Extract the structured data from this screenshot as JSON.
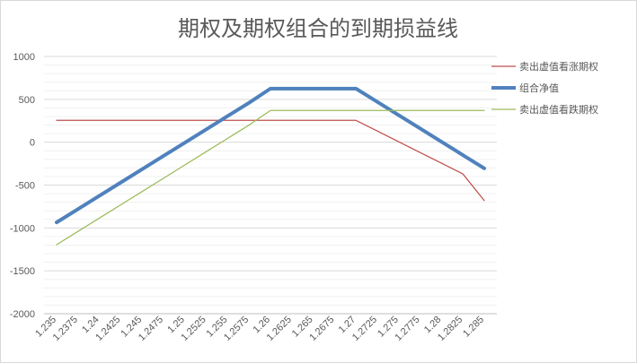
{
  "chart_data": {
    "type": "line",
    "title": "期权及期权组合的到期损益线",
    "xlabel": "",
    "ylabel": "",
    "ylim": [
      -2000,
      1000
    ],
    "ytick_step": 500,
    "ytick_labels": [
      "1000",
      "500",
      "0",
      "-500",
      "-1000",
      "-1500",
      "-2000"
    ],
    "grid": true,
    "legend_position": "right",
    "categories": [
      "1.235",
      "1.2375",
      "1.24",
      "1.2425",
      "1.245",
      "1.2475",
      "1.25",
      "1.2525",
      "1.255",
      "1.2575",
      "1.26",
      "1.2625",
      "1.265",
      "1.2675",
      "1.27",
      "1.2725",
      "1.275",
      "1.2775",
      "1.28",
      "1.2825",
      "1.285"
    ],
    "series": [
      {
        "name": "卖出虚值看涨期权",
        "color": "#c0504d",
        "values": [
          255,
          255,
          255,
          255,
          255,
          255,
          255,
          255,
          255,
          255,
          255,
          255,
          255,
          255,
          255,
          130,
          5,
          -120,
          -245,
          -370,
          -680
        ]
      },
      {
        "name": "组合净值",
        "color": "#4f81bd",
        "values": [
          -935,
          -780,
          -625,
          -470,
          -315,
          -160,
          -5,
          150,
          305,
          460,
          625,
          625,
          625,
          625,
          625,
          470,
          315,
          160,
          5,
          -150,
          -305
        ]
      },
      {
        "name": "卖出虚值看跌期权",
        "color": "#9bbb59",
        "values": [
          -1195,
          -1040,
          -885,
          -730,
          -575,
          -420,
          -265,
          -110,
          45,
          200,
          370,
          370,
          370,
          370,
          370,
          370,
          370,
          370,
          370,
          370,
          370
        ]
      }
    ]
  }
}
